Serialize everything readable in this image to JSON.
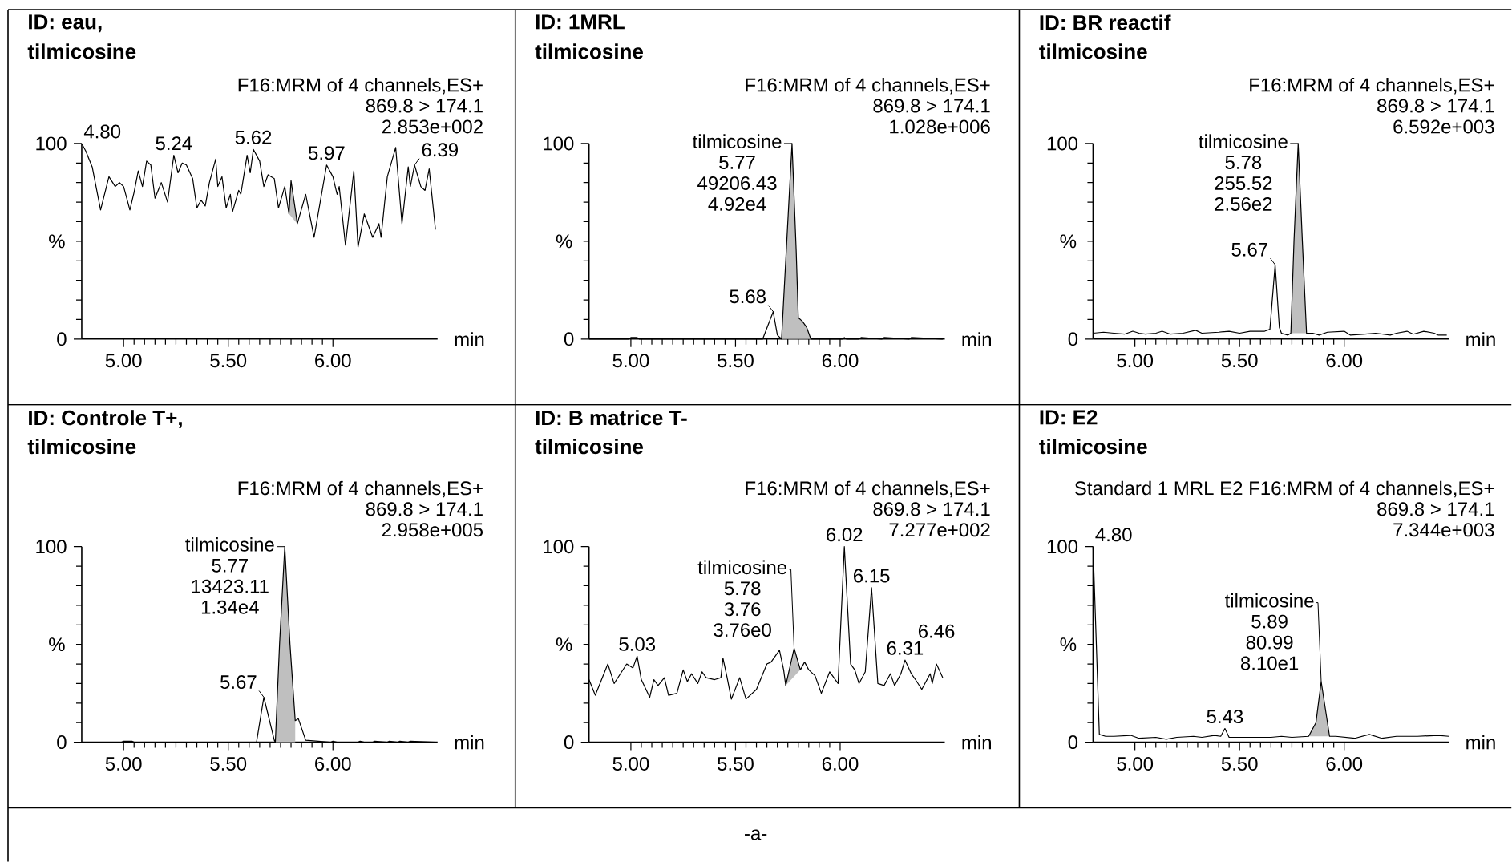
{
  "chart_data": [
    {
      "type": "line",
      "title": "ID: eau,",
      "subtitle": "tilmicosine",
      "xlabel": "min",
      "ylabel": "%",
      "xlim": [
        4.8,
        6.5
      ],
      "ylim": [
        0,
        100
      ],
      "xticks": [
        {
          "value": 5.0,
          "label": "5.00"
        },
        {
          "value": 5.5,
          "label": "5.50"
        },
        {
          "value": 6.0,
          "label": "6.00"
        }
      ],
      "yticks": [
        0,
        100
      ],
      "series": [
        {
          "type": "area",
          "color": "#bfbfbf",
          "x": [
            5.79,
            5.8,
            5.83
          ],
          "values": [
            64,
            81,
            59
          ]
        },
        {
          "color": "#000000",
          "x": [
            4.8,
            4.82,
            4.85,
            4.89,
            4.93,
            4.96,
            4.98,
            5.0,
            5.03,
            5.05,
            5.07,
            5.09,
            5.11,
            5.13,
            5.15,
            5.18,
            5.21,
            5.24,
            5.26,
            5.28,
            5.3,
            5.33,
            5.35,
            5.37,
            5.39,
            5.41,
            5.44,
            5.45,
            5.47,
            5.49,
            5.51,
            5.52,
            5.55,
            5.56,
            5.59,
            5.605,
            5.62,
            5.65,
            5.67,
            5.69,
            5.72,
            5.74,
            5.77,
            5.79,
            5.8,
            5.83,
            5.87,
            5.91,
            5.97,
            6.0,
            6.02,
            6.03,
            6.06,
            6.1,
            6.12,
            6.15,
            6.19,
            6.22,
            6.23,
            6.26,
            6.3,
            6.33,
            6.36,
            6.37,
            6.39,
            6.42,
            6.44,
            6.46,
            6.49
          ],
          "values": [
            100,
            96,
            88,
            66,
            83,
            78,
            80,
            78,
            66,
            75,
            86,
            78,
            91,
            89,
            72,
            80,
            70,
            94,
            85,
            90,
            89,
            82,
            67,
            71,
            68,
            80,
            92,
            78,
            83,
            67,
            74,
            65,
            76,
            74,
            94,
            85,
            97,
            91,
            78,
            84,
            82,
            67,
            78,
            64,
            81,
            59,
            74,
            52,
            89,
            83,
            74,
            78,
            48,
            86,
            47,
            64,
            52,
            59,
            52,
            83,
            98,
            59,
            88,
            78,
            89,
            78,
            76,
            87,
            56
          ]
        }
      ],
      "annotations": [
        "F16:MRM of 4 channels,ES+",
        "869.8 > 174.1",
        "2.853e+002",
        {
          "text": "4.80",
          "x": 4.8,
          "y": 100
        },
        {
          "text": "5.24",
          "x": 5.24,
          "y": 94
        },
        {
          "text": "5.62",
          "x": 5.62,
          "y": 97
        },
        {
          "text": "5.97",
          "x": 5.97,
          "y": 89
        },
        {
          "text": "6.39",
          "x": 6.39,
          "y": 89
        }
      ]
    },
    {
      "type": "line",
      "title": "ID: 1MRL",
      "subtitle": "tilmicosine",
      "xlabel": "min",
      "ylabel": "%",
      "xlim": [
        4.8,
        6.5
      ],
      "ylim": [
        0,
        100
      ],
      "xticks": [
        {
          "value": 5.0,
          "label": "5.00"
        },
        {
          "value": 5.5,
          "label": "5.50"
        },
        {
          "value": 6.0,
          "label": "6.00"
        }
      ],
      "yticks": [
        0,
        100
      ],
      "series": [
        {
          "type": "area",
          "color": "#bfbfbf",
          "x": [
            5.72,
            5.745,
            5.77,
            5.79,
            5.8,
            5.82,
            5.84,
            5.86
          ],
          "values": [
            0,
            50,
            100,
            45,
            11,
            9,
            6,
            0
          ]
        },
        {
          "color": "#000000",
          "x": [
            4.8,
            4.99,
            5.0,
            5.03,
            5.04,
            5.63,
            5.68,
            5.7,
            5.72,
            5.745,
            5.77,
            5.79,
            5.8,
            5.82,
            5.84,
            5.86,
            6.01,
            6.02,
            6.03,
            6.09,
            6.1,
            6.2,
            6.21,
            6.33,
            6.34,
            6.49
          ],
          "values": [
            0,
            0,
            0.8,
            0.8,
            0,
            0,
            14,
            2,
            0,
            50,
            100,
            45,
            11,
            9,
            6,
            0,
            0,
            0.8,
            0,
            0,
            0.8,
            0,
            0.8,
            0,
            0.8,
            0
          ]
        }
      ],
      "annotations": [
        "F16:MRM of 4 channels,ES+",
        "869.8 > 174.1",
        "1.028e+006",
        {
          "text": "tilmicosine",
          "x": 5.77,
          "y": 100
        },
        "5.77",
        "49206.43",
        "4.92e4",
        {
          "text": "5.68",
          "x": 5.68,
          "y": 14
        }
      ]
    },
    {
      "type": "line",
      "title": "ID: BR reactif",
      "subtitle": "tilmicosine",
      "xlabel": "min",
      "ylabel": "%",
      "xlim": [
        4.8,
        6.5
      ],
      "ylim": [
        0,
        100
      ],
      "xticks": [
        {
          "value": 5.0,
          "label": "5.00"
        },
        {
          "value": 5.5,
          "label": "5.50"
        },
        {
          "value": 6.0,
          "label": "6.00"
        }
      ],
      "yticks": [
        0,
        100
      ],
      "series": [
        {
          "type": "area",
          "color": "#bfbfbf",
          "x": [
            5.745,
            5.76,
            5.78,
            5.8,
            5.82
          ],
          "values": [
            3,
            50,
            100,
            50,
            3
          ]
        },
        {
          "color": "#000000",
          "x": [
            4.8,
            4.85,
            4.9,
            4.95,
            4.99,
            5.02,
            5.05,
            5.1,
            5.13,
            5.17,
            5.23,
            5.29,
            5.32,
            5.4,
            5.45,
            5.5,
            5.55,
            5.62,
            5.645,
            5.67,
            5.69,
            5.7,
            5.73,
            5.745,
            5.76,
            5.78,
            5.8,
            5.82,
            5.85,
            5.88,
            5.92,
            6.0,
            6.03,
            6.1,
            6.15,
            6.22,
            6.25,
            6.3,
            6.33,
            6.38,
            6.43,
            6.45,
            6.49
          ],
          "values": [
            3,
            3.5,
            3,
            2.5,
            4,
            3,
            2.5,
            3,
            4,
            2.5,
            3,
            4.5,
            3,
            3.5,
            4,
            3,
            4,
            4,
            5,
            38,
            6,
            3,
            2,
            3,
            50,
            100,
            50,
            3,
            3,
            2,
            3.5,
            4,
            2,
            2.5,
            3,
            2,
            3,
            4,
            2.5,
            4,
            3,
            2,
            2
          ]
        }
      ],
      "annotations": [
        "F16:MRM of 4 channels,ES+",
        "869.8 > 174.1",
        "6.592e+003",
        {
          "text": "tilmicosine",
          "x": 5.78,
          "y": 100
        },
        "5.78",
        "255.52",
        "2.56e2",
        {
          "text": "5.67",
          "x": 5.67,
          "y": 38
        }
      ]
    },
    {
      "type": "line",
      "title": "ID: Controle T+,",
      "subtitle": "tilmicosine",
      "xlabel": "min",
      "ylabel": "%",
      "xlim": [
        4.8,
        6.5
      ],
      "ylim": [
        0,
        100
      ],
      "xticks": [
        {
          "value": 5.0,
          "label": "5.00"
        },
        {
          "value": 5.5,
          "label": "5.50"
        },
        {
          "value": 6.0,
          "label": "6.00"
        }
      ],
      "yticks": [
        0,
        100
      ],
      "series": [
        {
          "type": "area",
          "color": "#bfbfbf",
          "x": [
            5.725,
            5.745,
            5.77,
            5.795,
            5.82,
            5.82
          ],
          "values": [
            0,
            50,
            100,
            50,
            11,
            0
          ]
        },
        {
          "color": "#000000",
          "x": [
            4.8,
            4.99,
            5.0,
            5.04,
            5.05,
            5.635,
            5.67,
            5.72,
            5.725,
            5.745,
            5.77,
            5.795,
            5.82,
            5.835,
            5.87,
            5.99,
            6.0,
            6.02,
            6.12,
            6.13,
            6.15,
            6.19,
            6.2,
            6.26,
            6.27,
            6.31,
            6.32,
            6.36,
            6.37,
            6.49
          ],
          "values": [
            0,
            0,
            0.5,
            0.5,
            0,
            0,
            23,
            1,
            0,
            50,
            100,
            50,
            11,
            12,
            1,
            0,
            0.5,
            0,
            0,
            0.5,
            0,
            0,
            0.5,
            0,
            0.5,
            0,
            0.5,
            0,
            0.5,
            0
          ]
        }
      ],
      "annotations": [
        "F16:MRM of 4 channels,ES+",
        "869.8 > 174.1",
        "2.958e+005",
        {
          "text": "tilmicosine",
          "x": 5.77,
          "y": 100
        },
        "5.77",
        "13423.11",
        "1.34e4",
        {
          "text": "5.67",
          "x": 5.67,
          "y": 23
        }
      ]
    },
    {
      "type": "line",
      "title": "ID: B matrice T-",
      "subtitle": "tilmicosine",
      "xlabel": "min",
      "ylabel": "%",
      "xlim": [
        4.8,
        6.5
      ],
      "ylim": [
        0,
        100
      ],
      "xticks": [
        {
          "value": 5.0,
          "label": "5.00"
        },
        {
          "value": 5.5,
          "label": "5.50"
        },
        {
          "value": 6.0,
          "label": "6.00"
        }
      ],
      "yticks": [
        0,
        100
      ],
      "series": [
        {
          "type": "area",
          "color": "#bfbfbf",
          "x": [
            5.74,
            5.78,
            5.81
          ],
          "values": [
            29,
            48,
            37
          ]
        },
        {
          "color": "#000000",
          "x": [
            4.8,
            4.83,
            4.89,
            4.92,
            4.95,
            4.98,
            5.01,
            5.03,
            5.05,
            5.09,
            5.11,
            5.13,
            5.16,
            5.18,
            5.22,
            5.25,
            5.27,
            5.29,
            5.32,
            5.34,
            5.36,
            5.4,
            5.43,
            5.44,
            5.46,
            5.48,
            5.52,
            5.55,
            5.6,
            5.65,
            5.67,
            5.71,
            5.73,
            5.74,
            5.78,
            5.81,
            5.83,
            5.85,
            5.88,
            5.91,
            5.95,
            5.99,
            6.02,
            6.05,
            6.07,
            6.09,
            6.12,
            6.15,
            6.18,
            6.21,
            6.24,
            6.26,
            6.29,
            6.31,
            6.34,
            6.36,
            6.39,
            6.43,
            6.44,
            6.46,
            6.49
          ],
          "values": [
            32,
            24,
            40,
            30,
            35,
            40,
            38,
            44,
            32,
            23,
            32,
            29,
            33,
            24,
            25,
            37,
            31,
            35,
            30,
            36,
            33,
            32,
            33,
            43,
            33,
            22,
            33,
            22,
            27,
            40,
            41,
            47,
            37,
            29,
            48,
            37,
            41,
            37,
            34,
            25,
            36,
            30,
            100,
            40,
            37,
            30,
            36,
            79,
            30,
            29,
            35,
            29,
            35,
            42,
            35,
            32,
            27,
            35,
            30,
            40,
            33
          ]
        }
      ],
      "annotations": [
        "F16:MRM of 4 channels,ES+",
        "869.8 > 174.1",
        "7.277e+002",
        {
          "text": "5.03",
          "x": 5.03,
          "y": 44
        },
        {
          "text": "tilmicosine",
          "x": 5.78,
          "y": 48
        },
        "5.78",
        "3.76",
        "3.76e0",
        {
          "text": "6.02",
          "x": 6.02,
          "y": 100
        },
        {
          "text": "6.15",
          "x": 6.15,
          "y": 79
        },
        {
          "text": "6.31",
          "x": 6.31,
          "y": 42
        },
        {
          "text": "6.46",
          "x": 6.46,
          "y": 40
        }
      ]
    },
    {
      "type": "line",
      "title": "ID: E2",
      "subtitle": "tilmicosine",
      "xlabel": "min",
      "ylabel": "%",
      "xlim": [
        4.8,
        6.5
      ],
      "ylim": [
        0,
        100
      ],
      "xticks": [
        {
          "value": 5.0,
          "label": "5.00"
        },
        {
          "value": 5.5,
          "label": "5.50"
        },
        {
          "value": 6.0,
          "label": "6.00"
        }
      ],
      "yticks": [
        0,
        100
      ],
      "series": [
        {
          "type": "area",
          "color": "#bfbfbf",
          "x": [
            5.83,
            5.865,
            5.89,
            5.93
          ],
          "values": [
            3,
            10,
            31,
            3
          ]
        },
        {
          "color": "#000000",
          "x": [
            4.8,
            4.83,
            4.86,
            4.9,
            4.98,
            5.02,
            5.1,
            5.15,
            5.2,
            5.28,
            5.32,
            5.38,
            5.41,
            5.43,
            5.45,
            5.5,
            5.55,
            5.65,
            5.7,
            5.75,
            5.83,
            5.865,
            5.89,
            5.93,
            5.96,
            6.05,
            6.12,
            6.18,
            6.25,
            6.35,
            6.45,
            6.5
          ],
          "values": [
            100,
            4,
            3,
            3,
            3.5,
            2,
            2.5,
            1.5,
            2.5,
            3,
            2.5,
            3.5,
            3,
            7,
            2.5,
            2.5,
            2.5,
            2.5,
            3,
            2.5,
            3,
            10,
            31,
            3,
            3,
            2,
            4,
            2,
            3,
            3,
            3.5,
            3
          ]
        }
      ],
      "annotations": [
        "Standard 1 MRL E2 F16:MRM of 4 channels,ES+",
        "869.8 > 174.1",
        "7.344e+003",
        {
          "text": "4.80",
          "x": 4.8,
          "y": 100
        },
        {
          "text": "5.43",
          "x": 5.43,
          "y": 7
        },
        {
          "text": "tilmicosine",
          "x": 5.89,
          "y": 31
        },
        "5.89",
        "80.99",
        "8.10e1"
      ]
    },
    {
      "type": "other",
      "annotations": [
        "-a-"
      ]
    }
  ]
}
